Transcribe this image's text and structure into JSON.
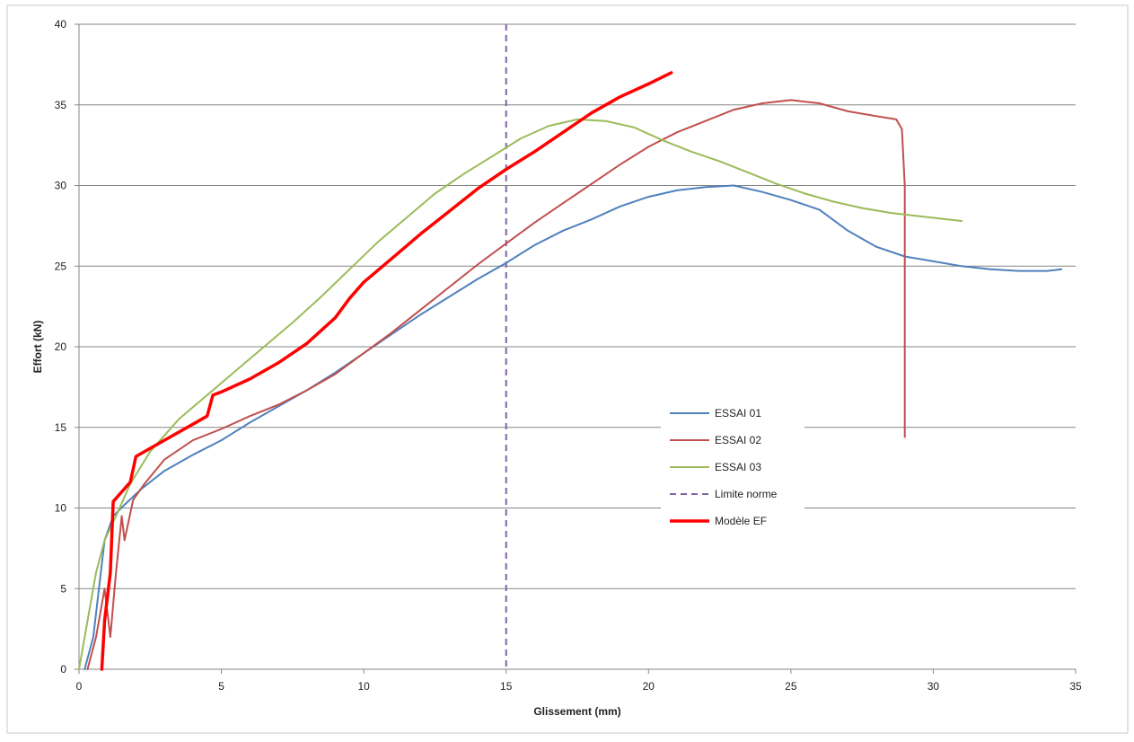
{
  "chart_data": {
    "type": "line",
    "title": "",
    "xlabel": "Glissement (mm)",
    "ylabel": "Effort (kN)",
    "xlim": [
      0,
      35
    ],
    "ylim": [
      0,
      40
    ],
    "x_ticks": [
      0,
      5,
      10,
      15,
      20,
      25,
      30,
      35
    ],
    "y_ticks": [
      0,
      5,
      10,
      15,
      20,
      25,
      30,
      35,
      40
    ],
    "grid": "horizontal",
    "legend_position": "center-right",
    "vertical_reference": {
      "x": 15,
      "label": "Limite norme",
      "color": "#8064a2",
      "dash": true
    },
    "series": [
      {
        "name": "ESSAI 01",
        "color": "#4f81bd",
        "points": [
          [
            0.2,
            0
          ],
          [
            0.5,
            2
          ],
          [
            0.7,
            5
          ],
          [
            0.9,
            8
          ],
          [
            1.2,
            9.5
          ],
          [
            1.6,
            10.2
          ],
          [
            2.2,
            11.2
          ],
          [
            3,
            12.3
          ],
          [
            4,
            13.3
          ],
          [
            5,
            14.2
          ],
          [
            6,
            15.3
          ],
          [
            7,
            16.3
          ],
          [
            8,
            17.3
          ],
          [
            9,
            18.4
          ],
          [
            10,
            19.6
          ],
          [
            11,
            20.8
          ],
          [
            12,
            22
          ],
          [
            13,
            23.1
          ],
          [
            14,
            24.2
          ],
          [
            15,
            25.2
          ],
          [
            16,
            26.3
          ],
          [
            17,
            27.2
          ],
          [
            18,
            27.9
          ],
          [
            19,
            28.7
          ],
          [
            20,
            29.3
          ],
          [
            21,
            29.7
          ],
          [
            22,
            29.9
          ],
          [
            23,
            30
          ],
          [
            24,
            29.6
          ],
          [
            25,
            29.1
          ],
          [
            26,
            28.5
          ],
          [
            27,
            27.2
          ],
          [
            28,
            26.2
          ],
          [
            29,
            25.6
          ],
          [
            30,
            25.3
          ],
          [
            31,
            25
          ],
          [
            32,
            24.8
          ],
          [
            33,
            24.7
          ],
          [
            34,
            24.7
          ],
          [
            34.5,
            24.8
          ]
        ]
      },
      {
        "name": "ESSAI 02",
        "color": "#c0504d",
        "points": [
          [
            0.3,
            0
          ],
          [
            0.6,
            2
          ],
          [
            0.9,
            5
          ],
          [
            1.1,
            2
          ],
          [
            1.3,
            6
          ],
          [
            1.5,
            9.5
          ],
          [
            1.6,
            8
          ],
          [
            1.9,
            10.5
          ],
          [
            2.3,
            11.5
          ],
          [
            3,
            13
          ],
          [
            4,
            14.2
          ],
          [
            5,
            14.9
          ],
          [
            6,
            15.7
          ],
          [
            7,
            16.4
          ],
          [
            8,
            17.3
          ],
          [
            9,
            18.3
          ],
          [
            10,
            19.6
          ],
          [
            11,
            20.9
          ],
          [
            12,
            22.3
          ],
          [
            13,
            23.7
          ],
          [
            14,
            25.1
          ],
          [
            15,
            26.4
          ],
          [
            16,
            27.7
          ],
          [
            17,
            28.9
          ],
          [
            18,
            30.1
          ],
          [
            19,
            31.3
          ],
          [
            20,
            32.4
          ],
          [
            21,
            33.3
          ],
          [
            22,
            34
          ],
          [
            23,
            34.7
          ],
          [
            24,
            35.1
          ],
          [
            25,
            35.3
          ],
          [
            26,
            35.1
          ],
          [
            27,
            34.6
          ],
          [
            28,
            34.3
          ],
          [
            28.7,
            34.1
          ],
          [
            28.9,
            33.5
          ],
          [
            29,
            30
          ],
          [
            29,
            14.4
          ]
        ]
      },
      {
        "name": "ESSAI 03",
        "color": "#9bbb59",
        "points": [
          [
            0,
            0
          ],
          [
            0.3,
            3
          ],
          [
            0.6,
            6
          ],
          [
            0.9,
            8
          ],
          [
            1.3,
            9.5
          ],
          [
            1.8,
            11.5
          ],
          [
            2.5,
            13.5
          ],
          [
            3.5,
            15.5
          ],
          [
            4.5,
            17
          ],
          [
            5.5,
            18.5
          ],
          [
            6.5,
            20
          ],
          [
            7.5,
            21.5
          ],
          [
            8.5,
            23.1
          ],
          [
            9.5,
            24.8
          ],
          [
            10.5,
            26.5
          ],
          [
            11.5,
            28
          ],
          [
            12.5,
            29.5
          ],
          [
            13.5,
            30.7
          ],
          [
            14.5,
            31.8
          ],
          [
            15.5,
            32.9
          ],
          [
            16.5,
            33.7
          ],
          [
            17.5,
            34.1
          ],
          [
            18.5,
            34
          ],
          [
            19.5,
            33.6
          ],
          [
            20.5,
            32.8
          ],
          [
            21.5,
            32.1
          ],
          [
            22.5,
            31.5
          ],
          [
            23.5,
            30.8
          ],
          [
            24.5,
            30.1
          ],
          [
            25.5,
            29.5
          ],
          [
            26.5,
            29
          ],
          [
            27.5,
            28.6
          ],
          [
            28.5,
            28.3
          ],
          [
            29.5,
            28.1
          ],
          [
            30.5,
            27.9
          ],
          [
            31,
            27.8
          ]
        ]
      },
      {
        "name": "Modèle EF",
        "color": "#ff0000",
        "points": [
          [
            0.8,
            0
          ],
          [
            0.9,
            3
          ],
          [
            1.1,
            6
          ],
          [
            1.2,
            10.4
          ],
          [
            1.5,
            11
          ],
          [
            1.8,
            11.6
          ],
          [
            2,
            13.2
          ],
          [
            3,
            14.2
          ],
          [
            4,
            15.2
          ],
          [
            4.5,
            15.7
          ],
          [
            4.7,
            17
          ],
          [
            5,
            17.2
          ],
          [
            6,
            18
          ],
          [
            7,
            19
          ],
          [
            8,
            20.2
          ],
          [
            9,
            21.8
          ],
          [
            9.5,
            23
          ],
          [
            10,
            24
          ],
          [
            11,
            25.5
          ],
          [
            12,
            27
          ],
          [
            13,
            28.4
          ],
          [
            14,
            29.8
          ],
          [
            15,
            31
          ],
          [
            16,
            32.1
          ],
          [
            17,
            33.3
          ],
          [
            18,
            34.5
          ],
          [
            19,
            35.5
          ],
          [
            20,
            36.3
          ],
          [
            20.8,
            37
          ]
        ]
      }
    ]
  }
}
